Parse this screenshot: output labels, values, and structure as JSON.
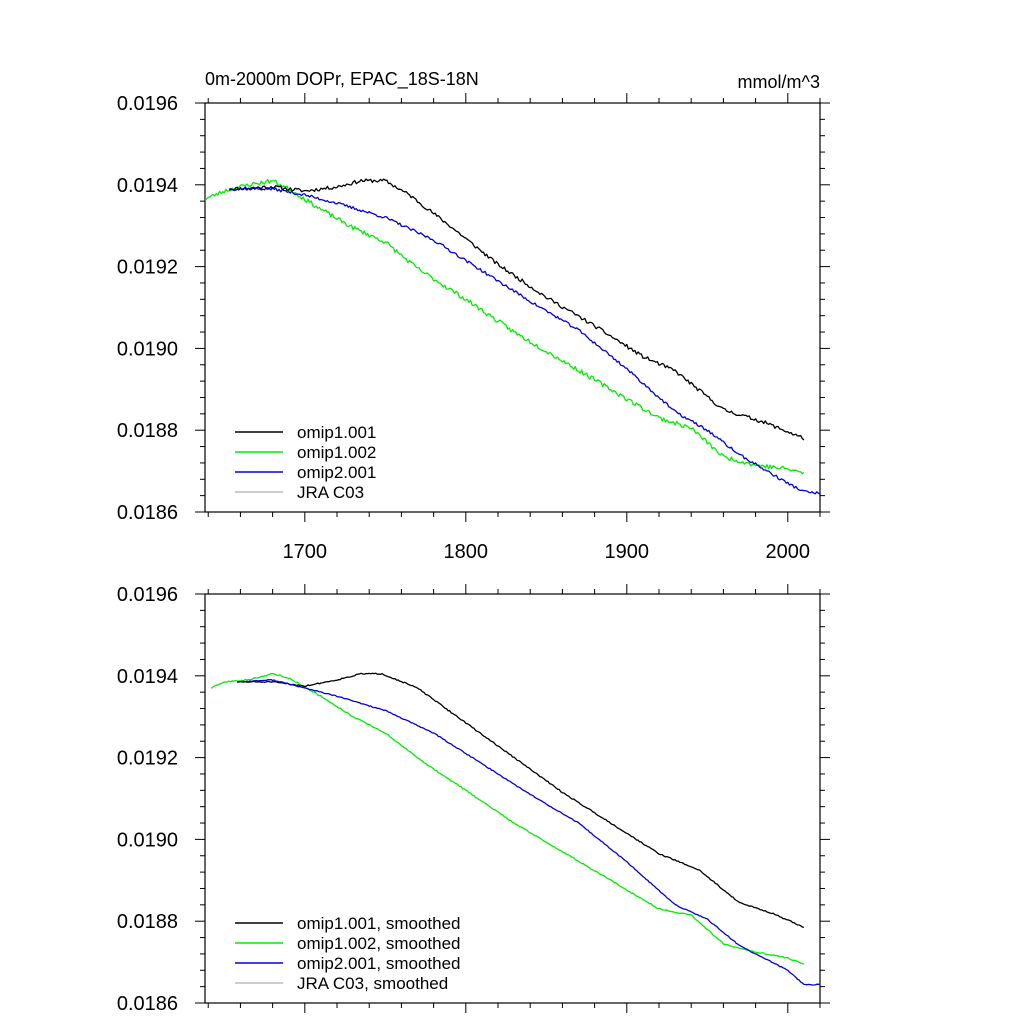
{
  "colors": {
    "omip1_001": "#000000",
    "omip1_002": "#00ee00",
    "omip2_001": "#0000dd",
    "jra_c03": "#bbbbbb"
  },
  "chart_data": [
    {
      "type": "line",
      "title": "0m-2000m DOPr, EPAC_18S-18N",
      "units": "mmol/m^3",
      "xlim": [
        1638,
        2020
      ],
      "ylim": [
        0.0186,
        0.0196
      ],
      "x_ticks": [
        1700,
        1800,
        1900,
        2000
      ],
      "x_tick_labels": [
        "1700",
        "1800",
        "1900",
        "2000"
      ],
      "y_ticks": [
        0.0186,
        0.0188,
        0.019,
        0.0192,
        0.0194,
        0.0196
      ],
      "y_tick_labels": [
        "0.0186",
        "0.0188",
        "0.0190",
        "0.0192",
        "0.0194",
        "0.0196"
      ],
      "legend_position": "bottom-left",
      "series": [
        {
          "key": "omip1_001",
          "name": "omip1.001",
          "color": "#000000",
          "noise": 4.5e-06,
          "seed": 11,
          "points": [
            [
              1653,
              0.01939
            ],
            [
              1680,
              0.019395
            ],
            [
              1700,
              0.019385
            ],
            [
              1720,
              0.019395
            ],
            [
              1735,
              0.01941
            ],
            [
              1750,
              0.01941
            ],
            [
              1765,
              0.019375
            ],
            [
              1790,
              0.0193
            ],
            [
              1820,
              0.019205
            ],
            [
              1850,
              0.019125
            ],
            [
              1880,
              0.019055
            ],
            [
              1910,
              0.01898
            ],
            [
              1930,
              0.018945
            ],
            [
              1960,
              0.01885
            ],
            [
              1985,
              0.01882
            ],
            [
              2010,
              0.01878
            ]
          ]
        },
        {
          "key": "omip1_002",
          "name": "omip1.002",
          "color": "#00ee00",
          "noise": 5.5e-06,
          "seed": 23,
          "points": [
            [
              1638,
              0.019365
            ],
            [
              1650,
              0.019385
            ],
            [
              1665,
              0.0194
            ],
            [
              1680,
              0.01941
            ],
            [
              1690,
              0.01939
            ],
            [
              1710,
              0.01934
            ],
            [
              1730,
              0.019295
            ],
            [
              1750,
              0.01926
            ],
            [
              1770,
              0.019195
            ],
            [
              1800,
              0.01912
            ],
            [
              1830,
              0.01904
            ],
            [
              1860,
              0.01897
            ],
            [
              1890,
              0.0189
            ],
            [
              1920,
              0.01883
            ],
            [
              1940,
              0.018805
            ],
            [
              1960,
              0.018735
            ],
            [
              1980,
              0.018715
            ],
            [
              2000,
              0.018705
            ],
            [
              2010,
              0.018695
            ]
          ]
        },
        {
          "key": "omip2_001",
          "name": "omip2.001",
          "color": "#0000dd",
          "noise": 3.5e-06,
          "seed": 37,
          "points": [
            [
              1653,
              0.01939
            ],
            [
              1680,
              0.01939
            ],
            [
              1700,
              0.019375
            ],
            [
              1720,
              0.019355
            ],
            [
              1750,
              0.01932
            ],
            [
              1780,
              0.019265
            ],
            [
              1810,
              0.01919
            ],
            [
              1840,
              0.019115
            ],
            [
              1870,
              0.019045
            ],
            [
              1900,
              0.01895
            ],
            [
              1930,
              0.018845
            ],
            [
              1950,
              0.0188
            ],
            [
              1970,
              0.01874
            ],
            [
              2000,
              0.01867
            ],
            [
              2010,
              0.01865
            ],
            [
              2020,
              0.018645
            ]
          ]
        },
        {
          "key": "jra_c03",
          "name": "JRA C03",
          "color": "#bbbbbb",
          "noise": 0,
          "seed": 1,
          "points": []
        }
      ]
    },
    {
      "type": "line",
      "title": "",
      "units": "",
      "xlim": [
        1638,
        2020
      ],
      "ylim": [
        0.0186,
        0.0196
      ],
      "x_ticks": [
        1700,
        1800,
        1900,
        2000
      ],
      "x_tick_labels": [],
      "y_ticks": [
        0.0186,
        0.0188,
        0.019,
        0.0192,
        0.0194,
        0.0196
      ],
      "y_tick_labels": [
        "0.0186",
        "0.0188",
        "0.0190",
        "0.0192",
        "0.0194",
        "0.0196"
      ],
      "legend_position": "bottom-left",
      "series": [
        {
          "key": "omip1_001",
          "name": "omip1.001, smoothed",
          "color": "#000000",
          "noise": 1.5e-06,
          "seed": 51,
          "points": [
            [
              1658,
              0.019385
            ],
            [
              1680,
              0.019385
            ],
            [
              1700,
              0.019375
            ],
            [
              1720,
              0.01939
            ],
            [
              1735,
              0.019405
            ],
            [
              1748,
              0.019405
            ],
            [
              1770,
              0.01937
            ],
            [
              1800,
              0.019285
            ],
            [
              1830,
              0.0192
            ],
            [
              1860,
              0.019115
            ],
            [
              1890,
              0.01904
            ],
            [
              1920,
              0.018965
            ],
            [
              1945,
              0.018925
            ],
            [
              1970,
              0.018845
            ],
            [
              1990,
              0.01882
            ],
            [
              2010,
              0.018785
            ]
          ]
        },
        {
          "key": "omip1_002",
          "name": "omip1.002, smoothed",
          "color": "#00ee00",
          "noise": 1.5e-06,
          "seed": 63,
          "points": [
            [
              1642,
              0.01937
            ],
            [
              1650,
              0.019385
            ],
            [
              1665,
              0.01939
            ],
            [
              1680,
              0.019405
            ],
            [
              1690,
              0.019395
            ],
            [
              1710,
              0.01935
            ],
            [
              1730,
              0.0193
            ],
            [
              1750,
              0.01926
            ],
            [
              1775,
              0.019185
            ],
            [
              1800,
              0.01912
            ],
            [
              1830,
              0.01904
            ],
            [
              1860,
              0.01897
            ],
            [
              1890,
              0.0189
            ],
            [
              1920,
              0.01883
            ],
            [
              1940,
              0.018815
            ],
            [
              1960,
              0.018745
            ],
            [
              1980,
              0.018725
            ],
            [
              2000,
              0.01871
            ],
            [
              2010,
              0.018695
            ]
          ]
        },
        {
          "key": "omip2_001",
          "name": "omip2.001, smoothed",
          "color": "#0000dd",
          "noise": 1.2e-06,
          "seed": 77,
          "points": [
            [
              1658,
              0.019385
            ],
            [
              1680,
              0.01939
            ],
            [
              1700,
              0.01937
            ],
            [
              1720,
              0.01935
            ],
            [
              1750,
              0.019315
            ],
            [
              1780,
              0.01926
            ],
            [
              1810,
              0.019185
            ],
            [
              1840,
              0.01911
            ],
            [
              1870,
              0.01904
            ],
            [
              1900,
              0.018945
            ],
            [
              1930,
              0.01884
            ],
            [
              1950,
              0.018805
            ],
            [
              1970,
              0.01874
            ],
            [
              2000,
              0.01868
            ],
            [
              2010,
              0.018645
            ],
            [
              2020,
              0.018645
            ]
          ]
        },
        {
          "key": "jra_c03",
          "name": "JRA C03, smoothed",
          "color": "#bbbbbb",
          "noise": 0,
          "seed": 2,
          "points": []
        }
      ]
    }
  ]
}
